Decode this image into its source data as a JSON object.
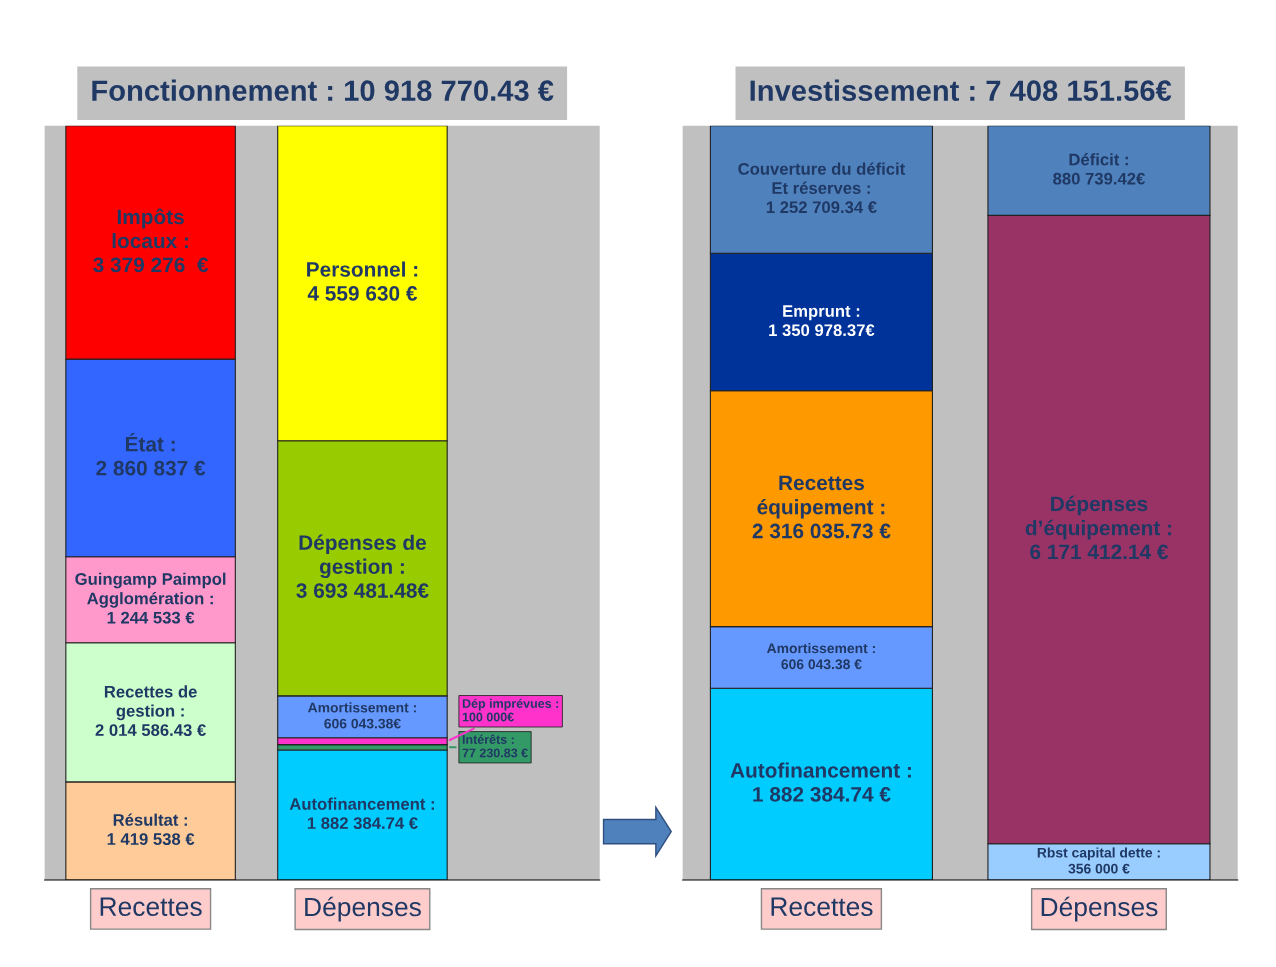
{
  "chart_data": [
    {
      "type": "bar",
      "stacked": true,
      "title": "Fonctionnement : 10 918 770.43 €",
      "categories": [
        "Recettes",
        "Dépenses"
      ],
      "tick_labels": "x",
      "series": [
        {
          "name": "Résultat :",
          "color": "#ffcc99",
          "values": [
            1419538,
            null
          ],
          "value_labels": [
            "1 419 538 €",
            null
          ]
        },
        {
          "name": "Recettes de\ngestion :",
          "color": "#ccffcc",
          "values": [
            2014586.43,
            null
          ],
          "value_labels": [
            "2 014 586.43 €",
            null
          ]
        },
        {
          "name": "Guingamp Paimpol\nAgglomération :",
          "color": "#ff99cc",
          "values": [
            1244533,
            null
          ],
          "value_labels": [
            "1 244 533 €",
            null
          ]
        },
        {
          "name": "État :",
          "color": "#3366ff",
          "values": [
            2860837,
            null
          ],
          "value_labels": [
            "2 860 837 €",
            null
          ]
        },
        {
          "name": "Impôts\nlocaux :",
          "color": "#ff0000",
          "values": [
            3379276,
            null
          ],
          "value_labels": [
            "3 379 276  €",
            null
          ]
        },
        {
          "name": "Autofinancement :",
          "color": "#00ccff",
          "values": [
            null,
            1882384.74
          ],
          "value_labels": [
            null,
            "1 882 384.74 €"
          ]
        },
        {
          "name": "Intérêts :",
          "color": "#339966",
          "values": [
            null,
            77230.83
          ],
          "value_labels": [
            null,
            "77 230.83 €"
          ]
        },
        {
          "name": "Dép imprévues :",
          "color": "#ff33cc",
          "values": [
            null,
            100000
          ],
          "value_labels": [
            null,
            "100 000€"
          ]
        },
        {
          "name": "Amortissement :",
          "color": "#6699ff",
          "values": [
            null,
            606043.38
          ],
          "value_labels": [
            null,
            "606 043.38€"
          ]
        },
        {
          "name": "Dépenses de\ngestion :",
          "color": "#99cc00",
          "values": [
            null,
            3693481.48
          ],
          "value_labels": [
            null,
            "3 693 481.48€"
          ]
        },
        {
          "name": "Personnel :",
          "color": "#ffff00",
          "values": [
            null,
            4559630
          ],
          "value_labels": [
            null,
            "4 559 630 €"
          ]
        }
      ]
    },
    {
      "type": "bar",
      "stacked": true,
      "title": "Investissement : 7 408 151.56€",
      "categories": [
        "Recettes",
        "Dépenses"
      ],
      "tick_labels": "x",
      "series": [
        {
          "name": "Autofinancement :",
          "color": "#00ccff",
          "values": [
            1882384.74,
            null
          ],
          "value_labels": [
            "1 882 384.74 €",
            null
          ]
        },
        {
          "name": "Amortissement :",
          "color": "#6699ff",
          "values": [
            606043.38,
            null
          ],
          "value_labels": [
            "606 043.38 €",
            null
          ]
        },
        {
          "name": "Recettes\néquipement :",
          "color": "#ff9900",
          "values": [
            2316035.73,
            null
          ],
          "value_labels": [
            "2 316 035.73 €",
            null
          ]
        },
        {
          "name": "Emprunt :",
          "color": "#003399",
          "values": [
            1350978.37,
            null
          ],
          "value_labels": [
            "1 350 978.37€",
            null
          ]
        },
        {
          "name": "Couverture du déficit\nEt réserves :",
          "color": "#4f81bd",
          "values": [
            1252709.34,
            null
          ],
          "value_labels": [
            "1 252 709.34 €",
            null
          ]
        },
        {
          "name": "Rbst capital dette :",
          "color": "#99ccff",
          "values": [
            null,
            356000
          ],
          "value_labels": [
            null,
            "356 000 €"
          ]
        },
        {
          "name": "Dépenses\nd’équipement :",
          "color": "#993366",
          "values": [
            null,
            6171412.14
          ],
          "value_labels": [
            null,
            "6 171 412.14 €"
          ]
        },
        {
          "name": "Déficit :",
          "color": "#4f81bd",
          "values": [
            null,
            880739.42
          ],
          "value_labels": [
            null,
            "880 739.42€"
          ]
        }
      ]
    }
  ]
}
